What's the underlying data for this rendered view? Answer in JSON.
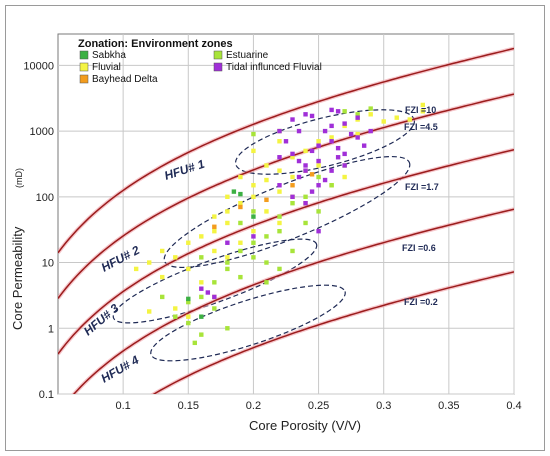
{
  "chart_data": {
    "type": "scatter",
    "xlabel": "Core Porosity (V/V)",
    "ylabel": "Core Permeability",
    "ylabel_unit": "(mD)",
    "xlim": [
      0.05,
      0.4
    ],
    "ylim": [
      0.1,
      30000
    ],
    "yscale": "log",
    "grid": true,
    "xticks": [
      "0.1",
      "0.15",
      "0.2",
      "0.25",
      "0.3",
      "0.35",
      "0.4"
    ],
    "yticks": [
      "0.1",
      "1",
      "10",
      "100",
      "1000",
      "10000"
    ],
    "legend": {
      "title": "Zonation: Environment zones",
      "placement": "top-left",
      "entries": [
        {
          "name": "Sabkha",
          "color": "#3cb043"
        },
        {
          "name": "Estuarine",
          "color": "#a8e43a"
        },
        {
          "name": "Fluvial",
          "color": "#f4f442"
        },
        {
          "name": "Tidal influnced Fluvial",
          "color": "#a02fd8"
        },
        {
          "name": "Bayhead Delta",
          "color": "#f39c1d"
        }
      ]
    },
    "fzi_lines": [
      {
        "label": "FZI =10",
        "fzi": 10
      },
      {
        "label": "FZI =4.5",
        "fzi": 4.5
      },
      {
        "label": "FZI =1.7",
        "fzi": 1.7
      },
      {
        "label": "FZI =0.6",
        "fzi": 0.6
      },
      {
        "label": "FZI =0.2",
        "fzi": 0.2
      }
    ],
    "hfu_labels": [
      "HFU# 1",
      "HFU# 2",
      "HFU# 3",
      "HFU# 4"
    ],
    "series": [
      {
        "name": "Fluvial",
        "color": "#f4f442",
        "points": [
          [
            0.12,
            10
          ],
          [
            0.13,
            15
          ],
          [
            0.14,
            12
          ],
          [
            0.15,
            20
          ],
          [
            0.15,
            8
          ],
          [
            0.16,
            25
          ],
          [
            0.17,
            30
          ],
          [
            0.17,
            15
          ],
          [
            0.18,
            40
          ],
          [
            0.18,
            60
          ],
          [
            0.19,
            80
          ],
          [
            0.19,
            200
          ],
          [
            0.2,
            150
          ],
          [
            0.2,
            100
          ],
          [
            0.21,
            180
          ],
          [
            0.21,
            300
          ],
          [
            0.22,
            250
          ],
          [
            0.22,
            120
          ],
          [
            0.23,
            400
          ],
          [
            0.23,
            200
          ],
          [
            0.24,
            500
          ],
          [
            0.24,
            250
          ],
          [
            0.25,
            700
          ],
          [
            0.25,
            300
          ],
          [
            0.26,
            800
          ],
          [
            0.27,
            1200
          ],
          [
            0.28,
            1500
          ],
          [
            0.28,
            900
          ],
          [
            0.29,
            1800
          ],
          [
            0.3,
            1400
          ],
          [
            0.31,
            1600
          ],
          [
            0.32,
            1500
          ],
          [
            0.33,
            2500
          ],
          [
            0.33,
            2000
          ],
          [
            0.16,
            5
          ],
          [
            0.17,
            3
          ],
          [
            0.14,
            2
          ],
          [
            0.13,
            6
          ],
          [
            0.15,
            1.5
          ],
          [
            0.21,
            60
          ],
          [
            0.22,
            40
          ],
          [
            0.2,
            30
          ],
          [
            0.19,
            20
          ],
          [
            0.18,
            100
          ],
          [
            0.26,
            150
          ],
          [
            0.27,
            200
          ],
          [
            0.23,
            100
          ],
          [
            0.17,
            50
          ],
          [
            0.18,
            12
          ],
          [
            0.24,
            80
          ],
          [
            0.2,
            500
          ],
          [
            0.22,
            700
          ],
          [
            0.11,
            8
          ],
          [
            0.12,
            1.8
          ]
        ]
      },
      {
        "name": "Estuarine",
        "color": "#a8e43a",
        "points": [
          [
            0.15,
            2.5
          ],
          [
            0.15,
            1.2
          ],
          [
            0.16,
            0.8
          ],
          [
            0.16,
            3
          ],
          [
            0.17,
            5
          ],
          [
            0.17,
            2
          ],
          [
            0.18,
            8
          ],
          [
            0.18,
            10
          ],
          [
            0.19,
            15
          ],
          [
            0.19,
            6
          ],
          [
            0.2,
            20
          ],
          [
            0.2,
            12
          ],
          [
            0.21,
            25
          ],
          [
            0.21,
            10
          ],
          [
            0.22,
            30
          ],
          [
            0.22,
            50
          ],
          [
            0.23,
            80
          ],
          [
            0.23,
            15
          ],
          [
            0.24,
            100
          ],
          [
            0.24,
            40
          ],
          [
            0.25,
            60
          ],
          [
            0.25,
            200
          ],
          [
            0.26,
            150
          ],
          [
            0.27,
            300
          ],
          [
            0.27,
            2000
          ],
          [
            0.28,
            1800
          ],
          [
            0.29,
            2200
          ],
          [
            0.2,
            900
          ],
          [
            0.22,
            1000
          ],
          [
            0.14,
            1.5
          ],
          [
            0.13,
            3
          ],
          [
            0.155,
            0.6
          ],
          [
            0.18,
            1
          ],
          [
            0.16,
            12
          ],
          [
            0.19,
            40
          ],
          [
            0.2,
            60
          ],
          [
            0.21,
            5
          ],
          [
            0.22,
            8
          ]
        ]
      },
      {
        "name": "Sabkha",
        "color": "#3cb043",
        "points": [
          [
            0.15,
            2.8
          ],
          [
            0.16,
            1.5
          ],
          [
            0.185,
            120
          ],
          [
            0.19,
            110
          ],
          [
            0.2,
            50
          ]
        ]
      },
      {
        "name": "Bayhead Delta",
        "color": "#f39c1d",
        "points": [
          [
            0.17,
            35
          ],
          [
            0.19,
            70
          ],
          [
            0.21,
            90
          ],
          [
            0.23,
            150
          ],
          [
            0.245,
            220
          ]
        ]
      },
      {
        "name": "Tidal influnced Fluvial",
        "color": "#a02fd8",
        "points": [
          [
            0.16,
            4
          ],
          [
            0.165,
            3.5
          ],
          [
            0.17,
            3
          ],
          [
            0.18,
            20
          ],
          [
            0.2,
            25
          ],
          [
            0.22,
            150
          ],
          [
            0.23,
            100
          ],
          [
            0.235,
            200
          ],
          [
            0.24,
            300
          ],
          [
            0.24,
            80
          ],
          [
            0.245,
            500
          ],
          [
            0.25,
            600
          ],
          [
            0.25,
            350
          ],
          [
            0.255,
            1000
          ],
          [
            0.26,
            1200
          ],
          [
            0.26,
            700
          ],
          [
            0.265,
            400
          ],
          [
            0.265,
            2000
          ],
          [
            0.27,
            1300
          ],
          [
            0.275,
            900
          ],
          [
            0.28,
            1600
          ],
          [
            0.28,
            800
          ],
          [
            0.285,
            600
          ],
          [
            0.29,
            1000
          ],
          [
            0.23,
            1500
          ],
          [
            0.235,
            1000
          ],
          [
            0.24,
            1800
          ],
          [
            0.245,
            1700
          ],
          [
            0.22,
            1000
          ],
          [
            0.225,
            700
          ],
          [
            0.23,
            450
          ],
          [
            0.235,
            350
          ],
          [
            0.24,
            250
          ],
          [
            0.25,
            150
          ],
          [
            0.255,
            180
          ],
          [
            0.26,
            250
          ],
          [
            0.27,
            300
          ],
          [
            0.27,
            450
          ],
          [
            0.265,
            550
          ],
          [
            0.22,
            400
          ],
          [
            0.26,
            2100
          ],
          [
            0.245,
            120
          ],
          [
            0.25,
            30
          ]
        ]
      }
    ]
  }
}
